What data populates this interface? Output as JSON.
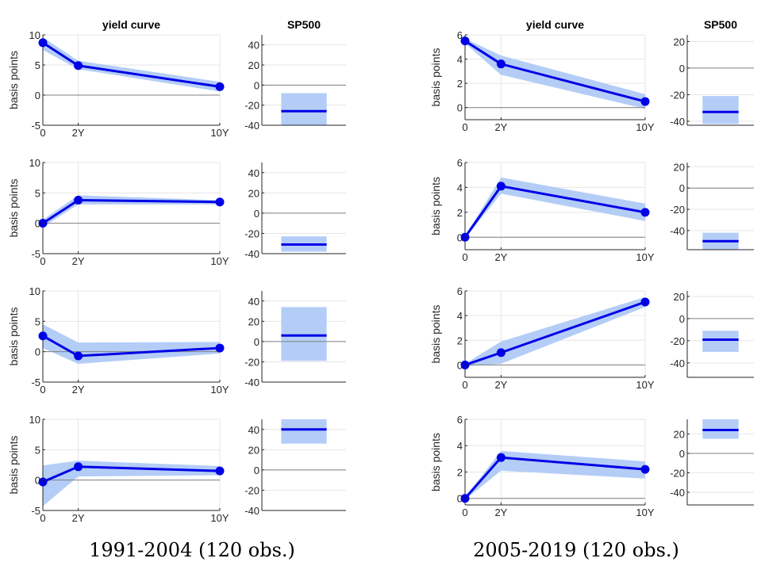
{
  "colors": {
    "line": "#0000e6",
    "band": "#b3cdf7",
    "grid": "#e6e6e6",
    "axis": "#262626",
    "zero": "#808080"
  },
  "chart_data": [
    {
      "type": "line",
      "panel": "left",
      "row": 0,
      "title": "yield curve",
      "ylabel": "basis points",
      "categories": [
        "0",
        "2Y",
        "10Y"
      ],
      "x": [
        0,
        2,
        10
      ],
      "values": [
        8.7,
        4.9,
        1.4
      ],
      "band_low": [
        7.5,
        4.3,
        0.6
      ],
      "band_high": [
        9.6,
        5.7,
        2.2
      ],
      "ylim": [
        -5,
        10
      ],
      "yticks": [
        "-5",
        "0",
        "5",
        "10"
      ],
      "xtick_labels": [
        "0",
        "2Y",
        "10Y"
      ]
    },
    {
      "type": "bar",
      "panel": "left",
      "row": 0,
      "title": "SP500",
      "value": -26,
      "band_low": -40,
      "band_high": -8,
      "ylim": [
        -40,
        50
      ],
      "yticks": [
        "-40",
        "-20",
        "0",
        "20",
        "40"
      ]
    },
    {
      "type": "line",
      "panel": "left",
      "row": 1,
      "ylabel": "basis points",
      "categories": [
        "0",
        "2Y",
        "10Y"
      ],
      "x": [
        0,
        2,
        10
      ],
      "values": [
        0,
        3.8,
        3.5
      ],
      "band_low": [
        -0.6,
        3.1,
        3.1
      ],
      "band_high": [
        0.6,
        4.6,
        3.8
      ],
      "ylim": [
        -5,
        10
      ],
      "yticks": [
        "-5",
        "0",
        "5",
        "10"
      ],
      "xtick_labels": [
        "0",
        "2Y",
        "10Y"
      ]
    },
    {
      "type": "bar",
      "panel": "left",
      "row": 1,
      "value": -31,
      "band_low": -38,
      "band_high": -23,
      "ylim": [
        -40,
        50
      ],
      "yticks": [
        "-40",
        "-20",
        "0",
        "20",
        "40"
      ]
    },
    {
      "type": "line",
      "panel": "left",
      "row": 2,
      "ylabel": "basis points",
      "categories": [
        "0",
        "2Y",
        "10Y"
      ],
      "x": [
        0,
        2,
        10
      ],
      "values": [
        2.6,
        -0.7,
        0.6
      ],
      "band_low": [
        0.6,
        -2,
        -0.3
      ],
      "band_high": [
        4.5,
        1.5,
        1.6
      ],
      "ylim": [
        -5,
        10
      ],
      "yticks": [
        "-5",
        "0",
        "5",
        "10"
      ],
      "xtick_labels": [
        "0",
        "2Y",
        "10Y"
      ]
    },
    {
      "type": "bar",
      "panel": "left",
      "row": 2,
      "value": 6,
      "band_low": -19,
      "band_high": 34,
      "ylim": [
        -40,
        50
      ],
      "yticks": [
        "-40",
        "-20",
        "0",
        "20",
        "40"
      ]
    },
    {
      "type": "line",
      "panel": "left",
      "row": 3,
      "ylabel": "basis points",
      "categories": [
        "0",
        "2Y",
        "10Y"
      ],
      "x": [
        0,
        2,
        10
      ],
      "values": [
        -0.3,
        2.2,
        1.5
      ],
      "band_low": [
        -4.3,
        0.6,
        0.8
      ],
      "band_high": [
        2.4,
        3.2,
        2.3
      ],
      "ylim": [
        -5,
        10
      ],
      "yticks": [
        "-5",
        "0",
        "5",
        "10"
      ],
      "xtick_labels": [
        "0",
        "2Y",
        "10Y"
      ]
    },
    {
      "type": "bar",
      "panel": "left",
      "row": 3,
      "value": 40,
      "band_low": 26,
      "band_high": 50,
      "ylim": [
        -40,
        50
      ],
      "yticks": [
        "-40",
        "-20",
        "0",
        "20",
        "40"
      ]
    },
    {
      "type": "line",
      "panel": "right",
      "row": 0,
      "title": "yield curve",
      "ylabel": "basis points",
      "categories": [
        "0",
        "2Y",
        "10Y"
      ],
      "x": [
        0,
        2,
        10
      ],
      "values": [
        5.5,
        3.6,
        0.5
      ],
      "band_low": [
        5.3,
        2.7,
        -0.1
      ],
      "band_high": [
        5.7,
        4.3,
        1.1
      ],
      "ylim": [
        -1,
        6
      ],
      "yticks": [
        "0",
        "2",
        "4",
        "6"
      ],
      "xtick_labels": [
        "0",
        "2Y",
        "10Y"
      ]
    },
    {
      "type": "bar",
      "panel": "right",
      "row": 0,
      "title": "SP500",
      "value": -33,
      "band_low": -42,
      "band_high": -21,
      "ylim": [
        -43,
        25
      ],
      "yticks": [
        "-40",
        "-20",
        "0",
        "20"
      ]
    },
    {
      "type": "line",
      "panel": "right",
      "row": 1,
      "ylabel": "basis points",
      "categories": [
        "0",
        "2Y",
        "10Y"
      ],
      "x": [
        0,
        2,
        10
      ],
      "values": [
        0,
        4.1,
        2
      ],
      "band_low": [
        -0.1,
        3.5,
        1.3
      ],
      "band_high": [
        0.1,
        4.8,
        2.7
      ],
      "ylim": [
        -1,
        6
      ],
      "yticks": [
        "0",
        "2",
        "4",
        "6"
      ],
      "xtick_labels": [
        "0",
        "2Y",
        "10Y"
      ]
    },
    {
      "type": "bar",
      "panel": "right",
      "row": 1,
      "value": -50,
      "band_low": -58,
      "band_high": -42,
      "ylim": [
        -58,
        24
      ],
      "yticks": [
        "-40",
        "-20",
        "0",
        "20"
      ]
    },
    {
      "type": "line",
      "panel": "right",
      "row": 2,
      "ylabel": "basis points",
      "categories": [
        "0",
        "2Y",
        "10Y"
      ],
      "x": [
        0,
        2,
        10
      ],
      "values": [
        0,
        1,
        5.1
      ],
      "band_low": [
        -0.1,
        0.1,
        4.7
      ],
      "band_high": [
        0.1,
        1.9,
        5.5
      ],
      "ylim": [
        -1,
        6
      ],
      "yticks": [
        "0",
        "2",
        "4",
        "6"
      ],
      "xtick_labels": [
        "0",
        "2Y",
        "10Y"
      ]
    },
    {
      "type": "bar",
      "panel": "right",
      "row": 2,
      "value": -19,
      "band_low": -30,
      "band_high": -11,
      "ylim": [
        -53,
        25
      ],
      "yticks": [
        "-40",
        "-20",
        "0",
        "20"
      ]
    },
    {
      "type": "line",
      "panel": "right",
      "row": 3,
      "ylabel": "basis points",
      "categories": [
        "0",
        "2Y",
        "10Y"
      ],
      "x": [
        0,
        2,
        10
      ],
      "values": [
        0,
        3.1,
        2.2
      ],
      "band_low": [
        -0.1,
        2.1,
        1.5
      ],
      "band_high": [
        0.1,
        3.6,
        2.8
      ],
      "ylim": [
        -0.5,
        6
      ],
      "yticks": [
        "0",
        "2",
        "4",
        "6"
      ],
      "xtick_labels": [
        "0",
        "2Y",
        "10Y"
      ]
    },
    {
      "type": "bar",
      "panel": "right",
      "row": 3,
      "value": 24,
      "band_low": 15,
      "band_high": 35,
      "ylim": [
        -53,
        35
      ],
      "yticks": [
        "-40",
        "-20",
        "0",
        "20"
      ]
    }
  ],
  "captions": [
    "1991-2004 (120 obs.)",
    "2005-2019 (120 obs.)"
  ]
}
